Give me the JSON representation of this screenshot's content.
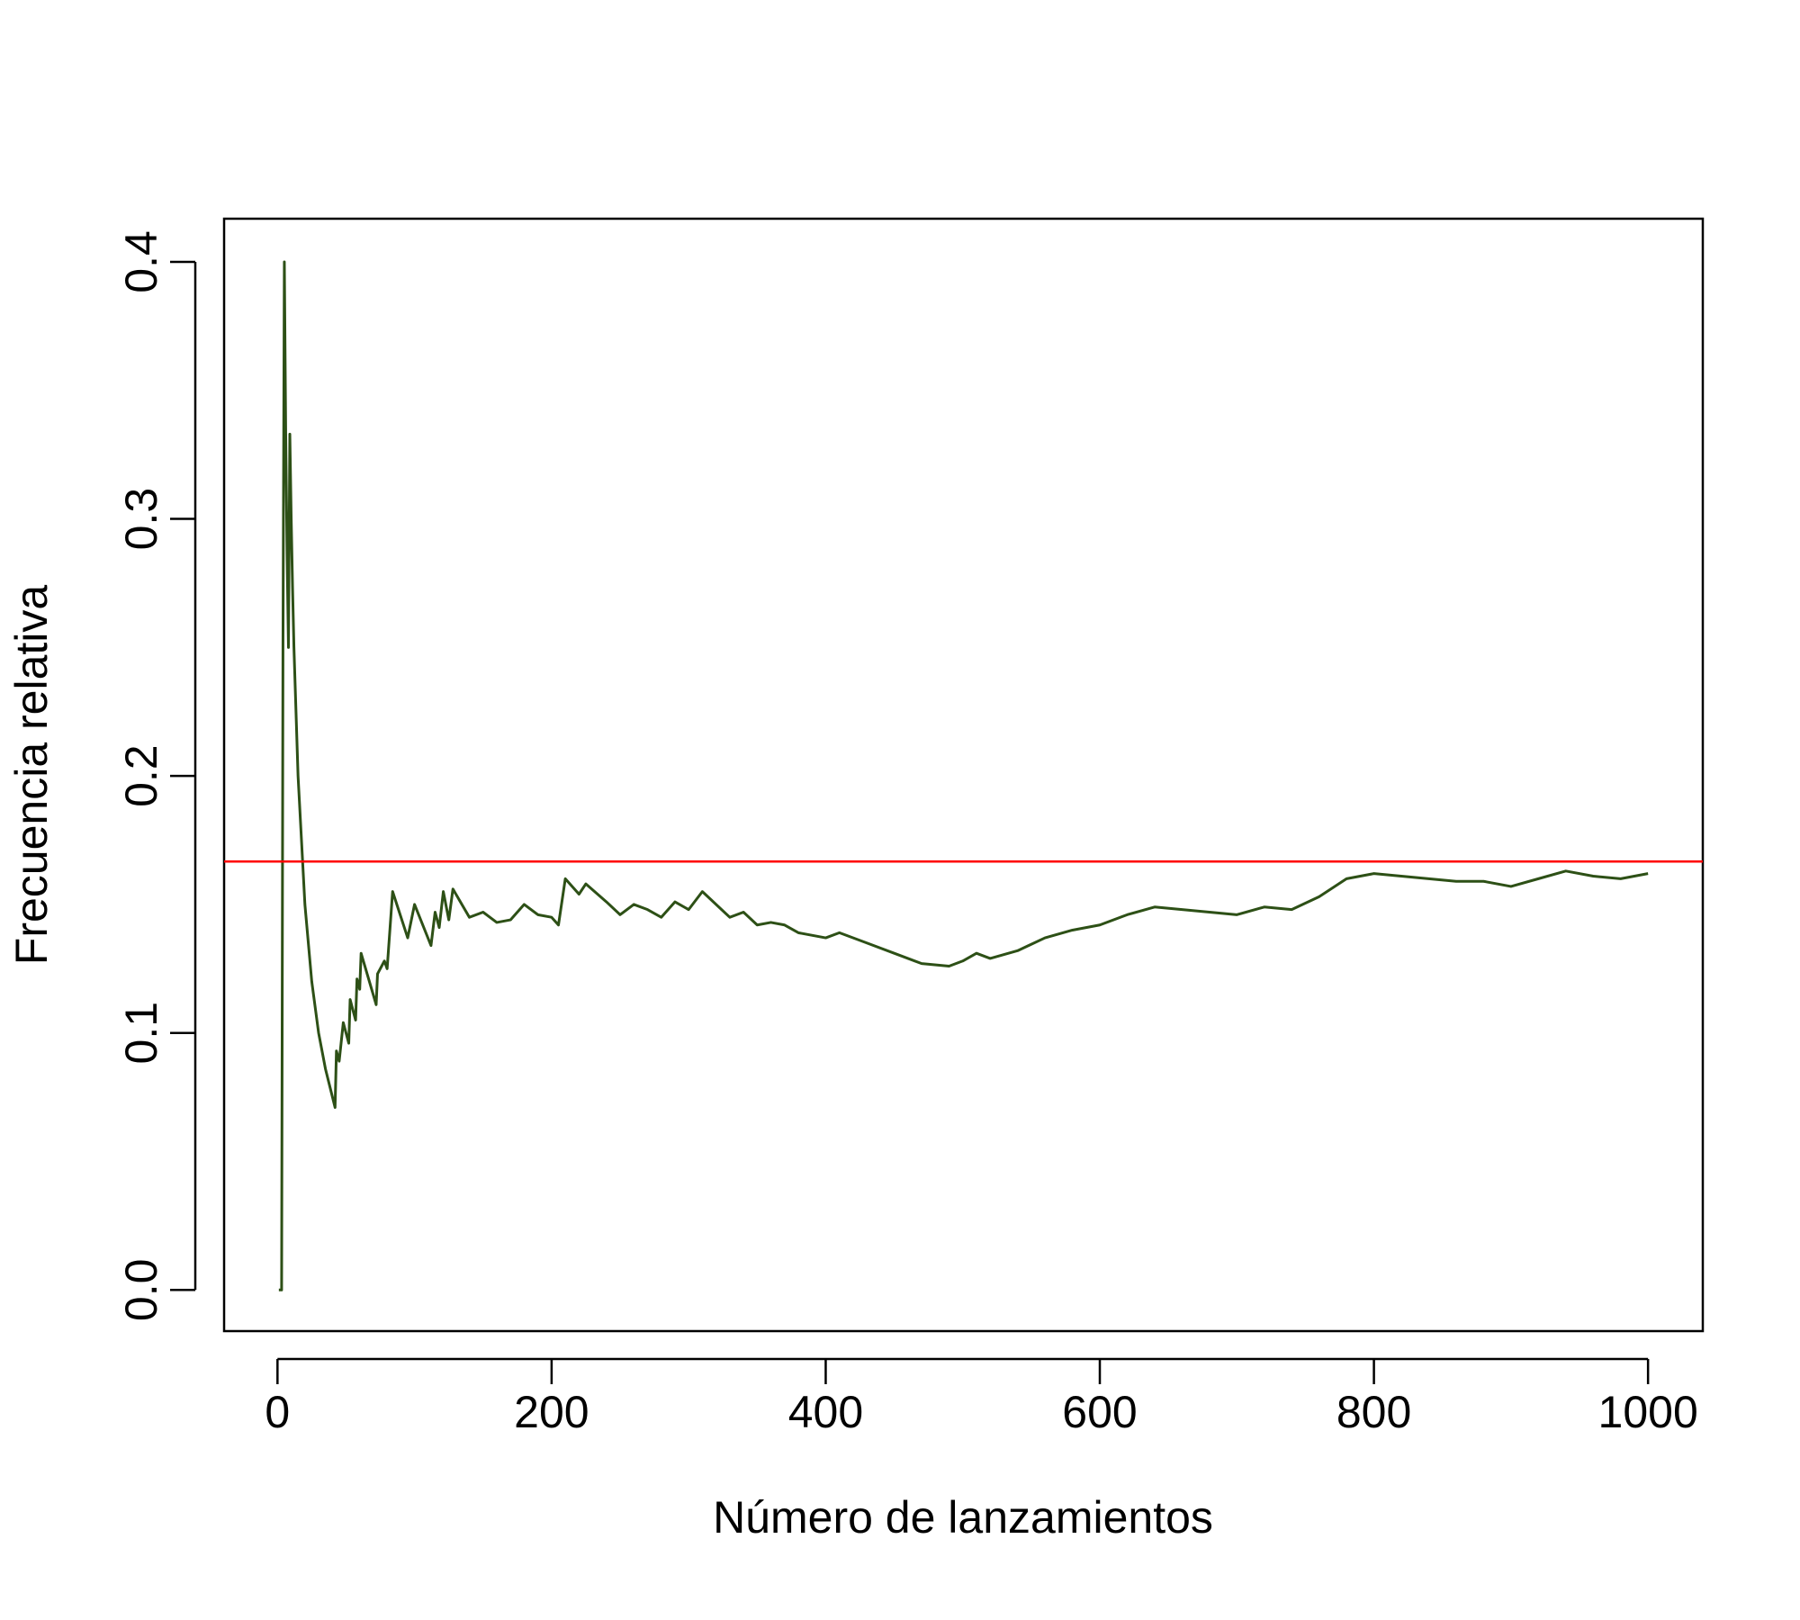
{
  "chart_data": {
    "type": "line",
    "x_label": "Número de lanzamientos",
    "y_label": "Frecuencia relativa",
    "xlim": [
      -38.96,
      1039.96
    ],
    "ylim": [
      -0.016,
      0.4168
    ],
    "xticks": [
      0,
      200,
      400,
      600,
      800,
      1000
    ],
    "yticks": [
      {
        "value": 0,
        "label": "0.0"
      },
      0.1,
      0.2,
      0.3,
      0.4
    ],
    "reference_line": {
      "value": 0.1667,
      "color": "#ff0000"
    },
    "x": [
      1,
      2,
      3,
      4,
      5,
      6,
      7,
      8,
      9,
      10,
      11,
      12,
      15,
      20,
      25,
      30,
      35,
      42,
      43,
      45,
      48,
      52,
      53,
      57,
      58,
      60,
      61,
      72,
      73,
      78,
      80,
      84,
      95,
      100,
      112,
      115,
      118,
      121,
      125,
      128,
      140,
      150,
      160,
      170,
      180,
      190,
      200,
      205,
      210,
      220,
      225,
      240,
      250,
      260,
      270,
      280,
      290,
      300,
      310,
      330,
      340,
      350,
      360,
      370,
      380,
      400,
      410,
      430,
      450,
      470,
      490,
      500,
      510,
      520,
      540,
      560,
      580,
      600,
      620,
      640,
      660,
      680,
      700,
      720,
      740,
      760,
      780,
      800,
      820,
      840,
      860,
      880,
      900,
      920,
      940,
      960,
      980,
      1000
    ],
    "series": [
      {
        "color": "#2d5016",
        "values": [
          0,
          0,
          0,
          0.25,
          0.4,
          0.333,
          0.286,
          0.25,
          0.333,
          0.3,
          0.273,
          0.25,
          0.2,
          0.15,
          0.12,
          0.1,
          0.086,
          0.071,
          0.093,
          0.089,
          0.104,
          0.096,
          0.113,
          0.105,
          0.121,
          0.117,
          0.131,
          0.111,
          0.123,
          0.128,
          0.125,
          0.155,
          0.137,
          0.15,
          0.134,
          0.147,
          0.141,
          0.155,
          0.144,
          0.156,
          0.145,
          0.147,
          0.143,
          0.144,
          0.15,
          0.146,
          0.145,
          0.142,
          0.16,
          0.154,
          0.158,
          0.151,
          0.146,
          0.15,
          0.148,
          0.145,
          0.151,
          0.148,
          0.155,
          0.145,
          0.147,
          0.142,
          0.143,
          0.142,
          0.139,
          0.137,
          0.139,
          0.135,
          0.131,
          0.127,
          0.126,
          0.128,
          0.131,
          0.129,
          0.132,
          0.137,
          0.14,
          0.142,
          0.146,
          0.149,
          0.148,
          0.147,
          0.146,
          0.149,
          0.148,
          0.153,
          0.16,
          0.162,
          0.161,
          0.16,
          0.159,
          0.159,
          0.157,
          0.16,
          0.163,
          0.161,
          0.16,
          0.162
        ]
      }
    ]
  }
}
